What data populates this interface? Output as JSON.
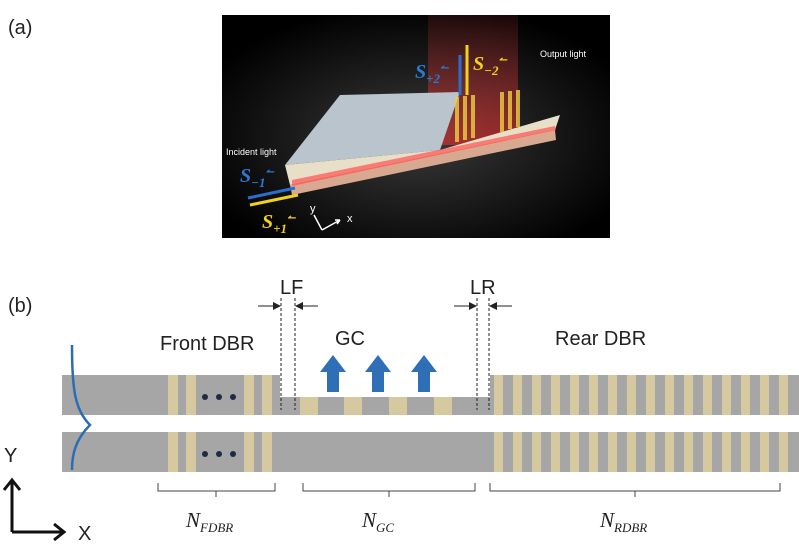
{
  "panel_a": {
    "label": "(a)",
    "incident_label": "Incident light",
    "output_label": "Output light",
    "axis_x": "x",
    "axis_y": "y",
    "signals": [
      {
        "symbol": "S",
        "sub": "−1",
        "sup": "↼"
      },
      {
        "symbol": "S",
        "sub": "+1",
        "sup": "↼"
      },
      {
        "symbol": "S",
        "sub": "+2",
        "sup": "↼"
      },
      {
        "symbol": "S",
        "sub": "−2",
        "sup": "↼"
      }
    ]
  },
  "panel_b": {
    "label": "(b)",
    "lf": "LF",
    "lr": "LR",
    "front": "Front DBR",
    "gc": "GC",
    "rear": "Rear DBR",
    "axis_y": "Y",
    "axis_x": "X",
    "counts": [
      {
        "symbol": "N",
        "sub": "FDBR"
      },
      {
        "symbol": "N",
        "sub": "GC"
      },
      {
        "symbol": "N",
        "sub": "RDBR"
      }
    ]
  }
}
